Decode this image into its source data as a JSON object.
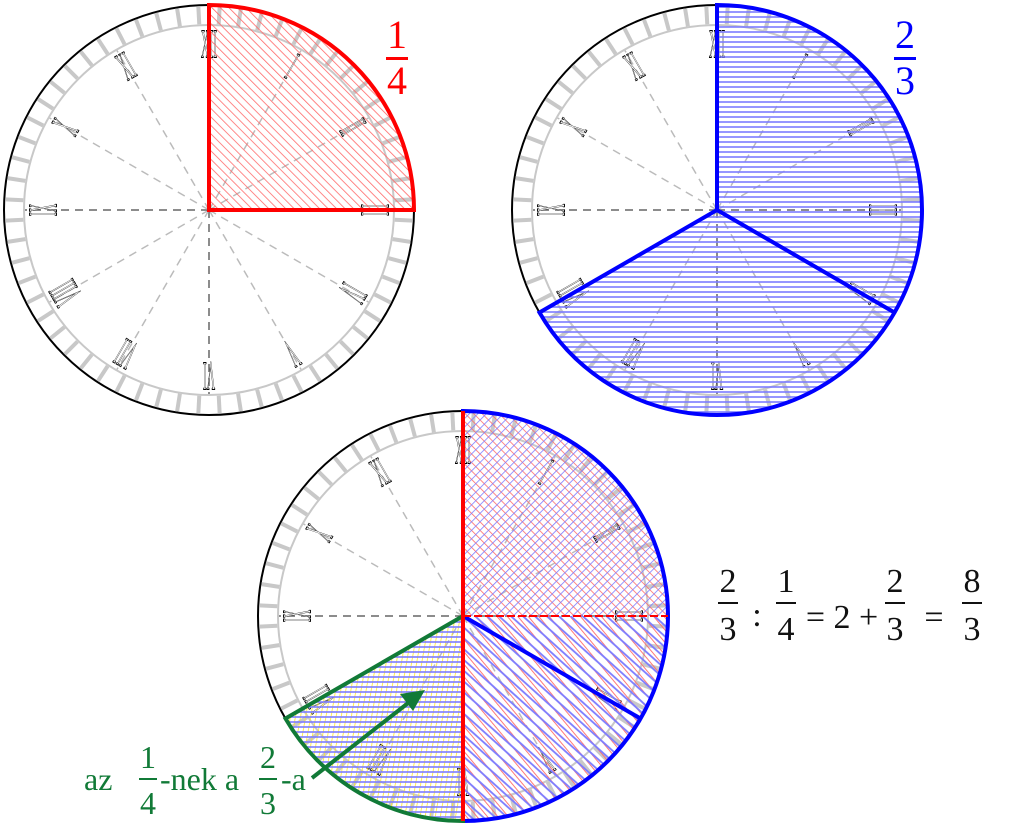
{
  "colors": {
    "red": "#ff0000",
    "blue": "#0000ff",
    "green": "#117a37",
    "yellow": "#ffee33",
    "hatch_red": "#ff6a6a",
    "hatch_blue": "#7b7bff"
  },
  "clock": {
    "numerals": [
      "XII",
      "I",
      "II",
      "III",
      "IV",
      "V",
      "VI",
      "VII",
      "VIII",
      "IX",
      "X",
      "XI"
    ]
  },
  "clocks": [
    {
      "fraction": {
        "num": "1",
        "den": "4"
      },
      "shaded": "first quarter (12 to 3 o'clock)"
    },
    {
      "fraction": {
        "num": "2",
        "den": "3"
      },
      "shaded": "two thirds (12 to 8 o'clock)"
    },
    {
      "shaded": "two thirds with one quarter of it highlighted"
    }
  ],
  "equation": {
    "f1": {
      "num": "2",
      "den": "3"
    },
    "op1": ":",
    "f2": {
      "num": "1",
      "den": "4"
    },
    "mid": "= 2 +",
    "f3": {
      "num": "2",
      "den": "3"
    },
    "eq": "=",
    "f4": {
      "num": "8",
      "den": "3"
    }
  },
  "label": {
    "prefix": "az",
    "f1": {
      "num": "1",
      "den": "4"
    },
    "middle": "-nek a",
    "f2": {
      "num": "2",
      "den": "3"
    },
    "suffix": "-a"
  }
}
